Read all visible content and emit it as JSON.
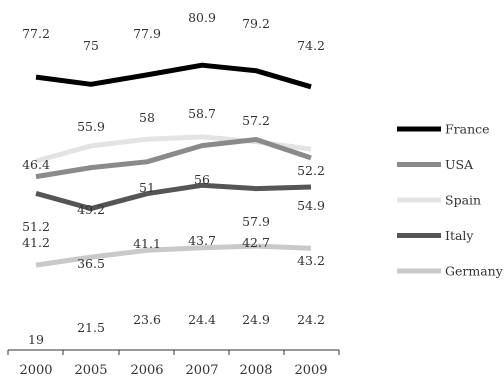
{
  "chart_data": {
    "type": "line",
    "categories": [
      "2000",
      "2005",
      "2006",
      "2007",
      "2008",
      "2009"
    ],
    "series": [
      {
        "name": "France",
        "color": "#000000",
        "values": [
          77.2,
          75,
          77.9,
          80.9,
          79.2,
          74.2
        ]
      },
      {
        "name": "USA",
        "color": "#8a8a8a",
        "values": [
          46.4,
          49.2,
          51,
          56,
          57.9,
          52.2
        ]
      },
      {
        "name": "Spain",
        "color": "#e3e3e3",
        "values": [
          51.2,
          55.9,
          58,
          58.7,
          57.2,
          54.9
        ]
      },
      {
        "name": "Italy",
        "color": "#555555",
        "values": [
          41.2,
          36.5,
          41.1,
          43.7,
          42.7,
          43.2
        ]
      },
      {
        "name": "Germany",
        "color": "#c9c9c9",
        "values": [
          19,
          21.5,
          23.6,
          24.4,
          24.9,
          24.2
        ]
      }
    ],
    "labels": [
      [
        "77.2",
        "75",
        "77.9",
        "80.9",
        "79.2",
        "74.2"
      ],
      [
        "46.4",
        "49.2",
        "51",
        "56",
        "57.9",
        "52.2"
      ],
      [
        "51.2",
        "55.9",
        "58",
        "58.7",
        "57.2",
        "54.9"
      ],
      [
        "41.2",
        "36.5",
        "41.1",
        "43.7",
        "42.7",
        "43.2"
      ],
      [
        "19",
        "21.5",
        "23.6",
        "24.4",
        "24.9",
        "24.2"
      ]
    ],
    "title": "",
    "xlabel": "",
    "ylabel": "",
    "legend": "right",
    "grid": false
  }
}
